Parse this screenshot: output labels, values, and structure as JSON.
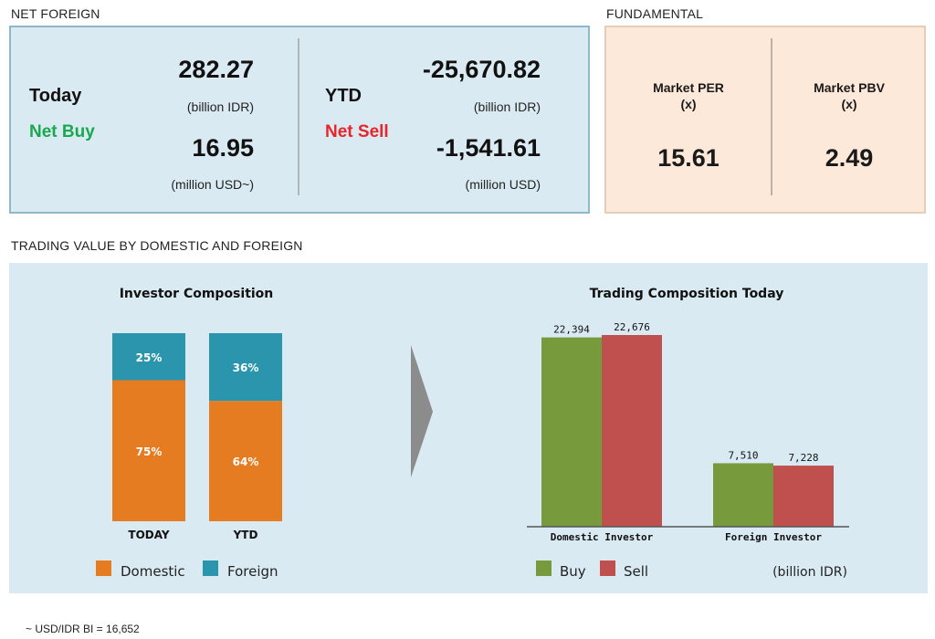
{
  "net_foreign": {
    "title": "NET FOREIGN",
    "today": {
      "label": "Today",
      "status": "Net Buy",
      "idr_value": "282.27",
      "idr_unit": "(billion IDR)",
      "usd_value": "16.95",
      "usd_unit": "(million USD~)"
    },
    "ytd": {
      "label": "YTD",
      "status": "Net Sell",
      "idr_value": "-25,670.82",
      "idr_unit": "(billion IDR)",
      "usd_value": "-1,541.61",
      "usd_unit": "(million USD)"
    }
  },
  "fundamental": {
    "title": "FUNDAMENTAL",
    "per": {
      "label": "Market PER",
      "unit": "(x)",
      "value": "15.61"
    },
    "pbv": {
      "label": "Market PBV",
      "unit": "(x)",
      "value": "2.49"
    }
  },
  "trading": {
    "title": "TRADING VALUE BY DOMESTIC AND FOREIGN"
  },
  "footnote": "~ USD/IDR BI = 16,652",
  "colors": {
    "domestic": "#e57c22",
    "foreign": "#2b95ae",
    "buy": "#779a3c",
    "sell": "#c0504d",
    "arrow": "#8c8c8c"
  },
  "chart_data": [
    {
      "type": "bar",
      "stacked": true,
      "percent": true,
      "title": "Investor Composition",
      "categories": [
        "TODAY",
        "YTD"
      ],
      "series": [
        {
          "name": "Domestic",
          "values": [
            75,
            64
          ],
          "labels": [
            "75%",
            "64%"
          ]
        },
        {
          "name": "Foreign",
          "values": [
            25,
            36
          ],
          "labels": [
            "25%",
            "36%"
          ]
        }
      ],
      "ylim": [
        0,
        100
      ],
      "legend": "bottom"
    },
    {
      "type": "bar",
      "title": "Trading Composition Today",
      "categories": [
        "Domestic Investor",
        "Foreign Investor"
      ],
      "series": [
        {
          "name": "Buy",
          "values": [
            22394,
            7510
          ],
          "labels": [
            "22,394",
            "7,510"
          ]
        },
        {
          "name": "Sell",
          "values": [
            22676,
            7228
          ],
          "labels": [
            "22,676",
            "7,228"
          ]
        }
      ],
      "unit_label": "(billion IDR)",
      "ylim": [
        0,
        22676
      ],
      "legend": "bottom"
    }
  ]
}
